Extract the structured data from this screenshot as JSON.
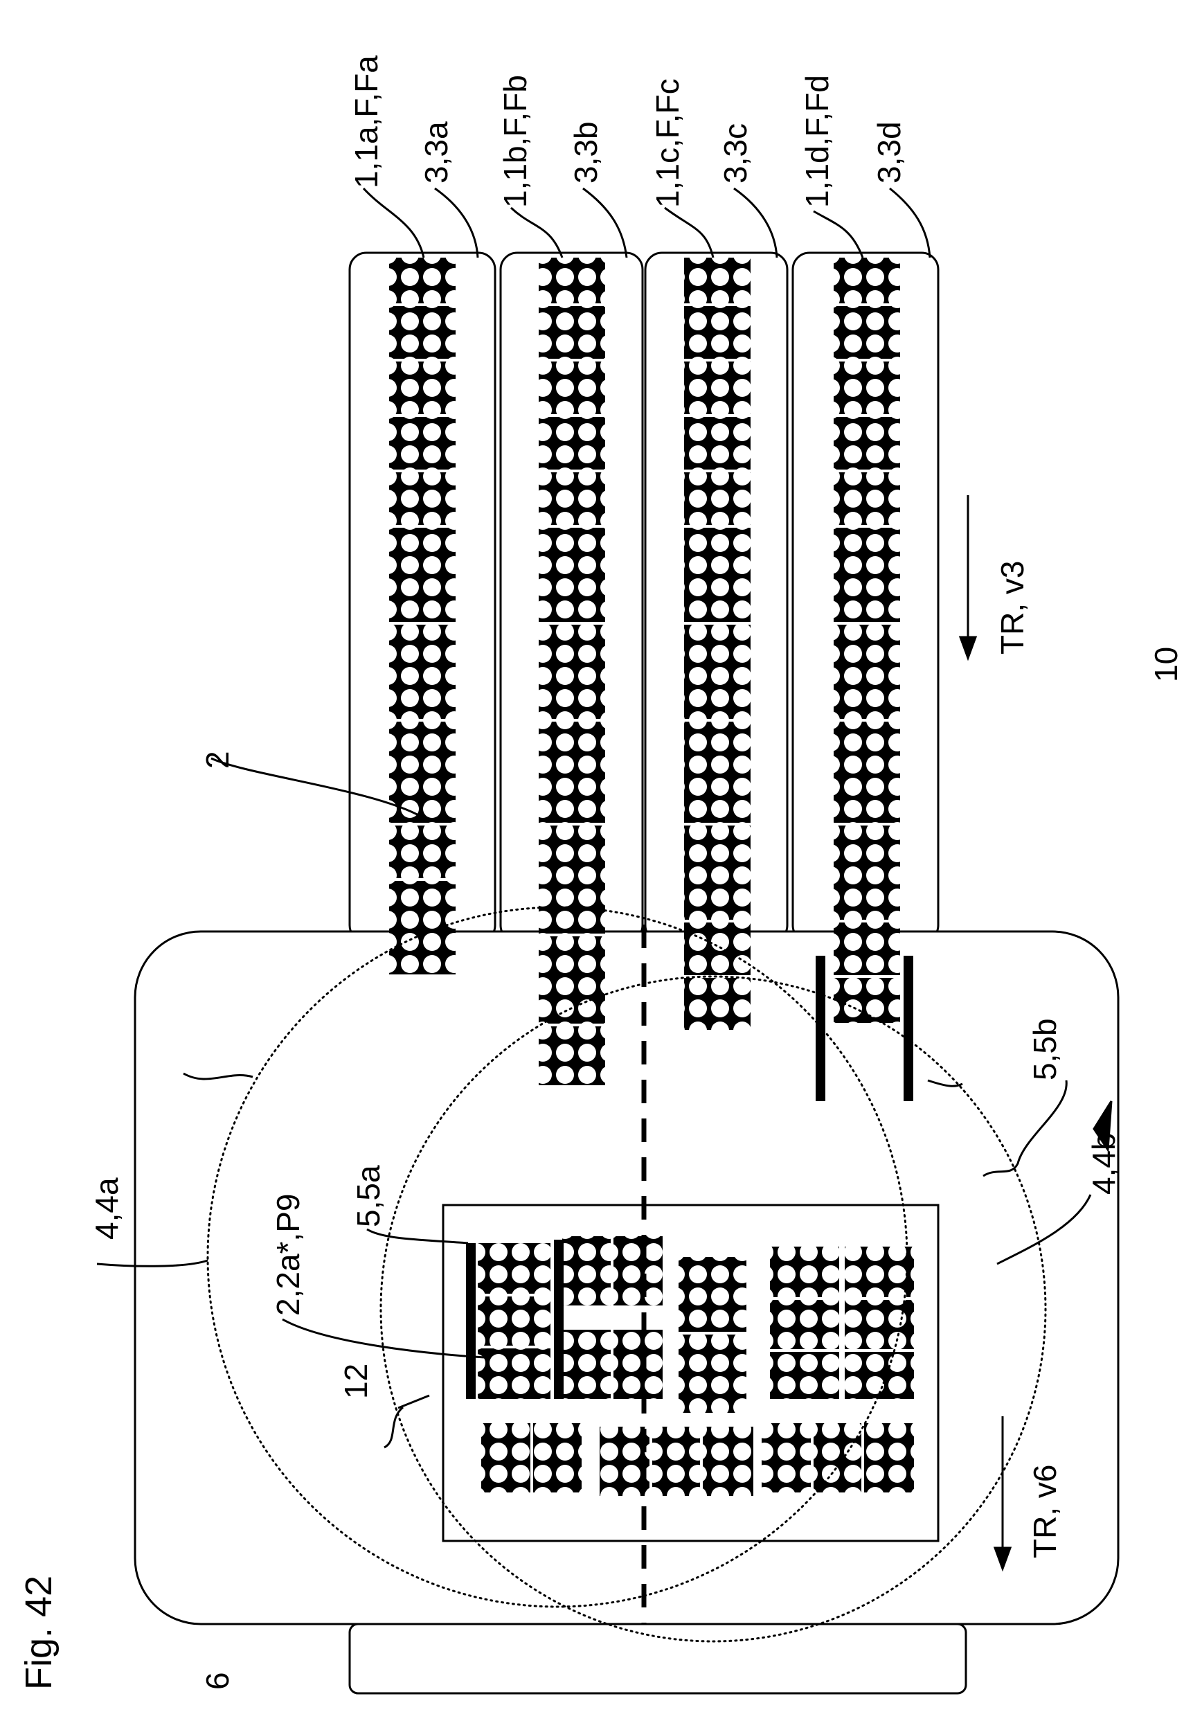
{
  "figure": {
    "title": "Fig. 42"
  },
  "labels": {
    "device": "10",
    "conveyor_a": "3,3a",
    "conveyor_b": "3,3b",
    "conveyor_c": "3,3c",
    "conveyor_d": "3,3d",
    "pack_row_a": "1,1a,F,Fa",
    "pack_row_b": "1,1b,F,Fb",
    "pack_row_c": "1,1c,F,Fc",
    "pack_row_d": "1,1d,F,Fd",
    "pack": "2",
    "manipulator_a": "4,4a",
    "manipulator_b": "4,4b",
    "gripper_a": "5,5a",
    "gripper_b": "5,5b",
    "layer": "12",
    "pack_placed": "2,2a*,P9",
    "table": "6",
    "direction_top": "TR, v3",
    "direction_bottom": "TR, v6"
  }
}
